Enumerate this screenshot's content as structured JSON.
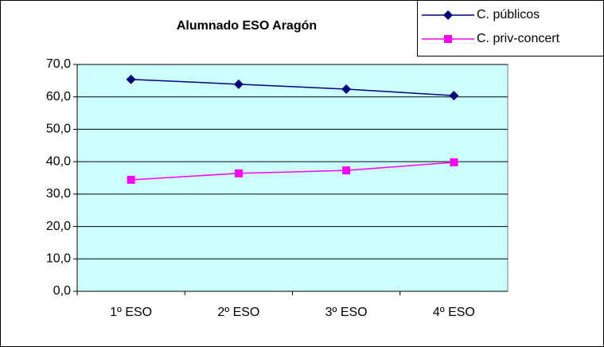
{
  "chart_data": {
    "type": "line",
    "title": "Alumnado ESO Aragón",
    "categories": [
      "1º ESO",
      "2º ESO",
      "3º ESO",
      "4º ESO"
    ],
    "series": [
      {
        "name": "C. públicos",
        "color": "#000080",
        "marker": "diamond",
        "values": [
          65.4,
          63.9,
          62.4,
          60.4
        ]
      },
      {
        "name": "C. priv-concert",
        "color": "#ff00ff",
        "marker": "square",
        "values": [
          34.4,
          36.4,
          37.3,
          39.8
        ]
      }
    ],
    "ylim": [
      0,
      70
    ],
    "yticks": [
      {
        "value": 0,
        "label": "0,0"
      },
      {
        "value": 10,
        "label": "10,0"
      },
      {
        "value": 20,
        "label": "20,0"
      },
      {
        "value": 30,
        "label": "30,0"
      },
      {
        "value": 40,
        "label": "40,0"
      },
      {
        "value": 50,
        "label": "50,0"
      },
      {
        "value": 60,
        "label": "60,0"
      },
      {
        "value": 70,
        "label": "70,0"
      }
    ],
    "grid": true,
    "legend": "top-right"
  }
}
